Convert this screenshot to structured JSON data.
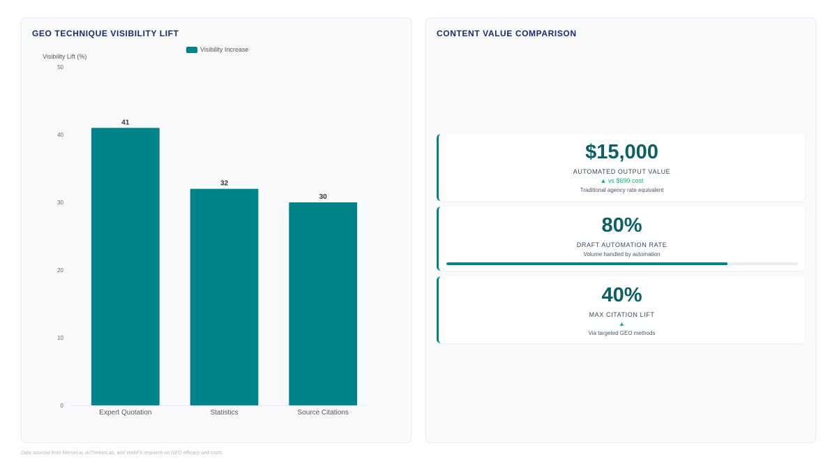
{
  "left_panel": {
    "title": "GEO TECHNIQUE VISIBILITY LIFT"
  },
  "right_panel": {
    "title": "CONTENT VALUE COMPARISON",
    "cards": [
      {
        "value": "$15,000",
        "label": "AUTOMATED OUTPUT VALUE",
        "trend": "▲ vs $699 cost",
        "note": "Traditional agency rate equivalent"
      },
      {
        "value": "80%",
        "label": "DRAFT AUTOMATION RATE",
        "note": "Volume handled by automation",
        "progress": 0.8
      },
      {
        "value": "40%",
        "label": "MAX CITATION LIFT",
        "trend": "▲",
        "note": "Via targeted GEO methods"
      }
    ]
  },
  "footer": "Data sourced from Merset.ai, AIThinkerLab, and WebFX research on GEO efficacy and costs.",
  "colors": {
    "bar": "#00848c",
    "accent_text": "#0c5f63",
    "trend": "#12b27a",
    "title": "#1a2a6c"
  },
  "chart_data": {
    "type": "bar",
    "categories": [
      "Expert Quotation",
      "Statistics",
      "Source Citations"
    ],
    "series": [
      {
        "name": "Visibility Increase",
        "values": [
          41,
          32,
          30
        ]
      }
    ],
    "ylabel": "Visibility Lift (%)",
    "xlabel": "",
    "ylim": [
      0,
      50
    ],
    "yticks": [
      0,
      10,
      20,
      30,
      40,
      50
    ],
    "legend": "top-center",
    "grid": false,
    "data_labels": true
  }
}
